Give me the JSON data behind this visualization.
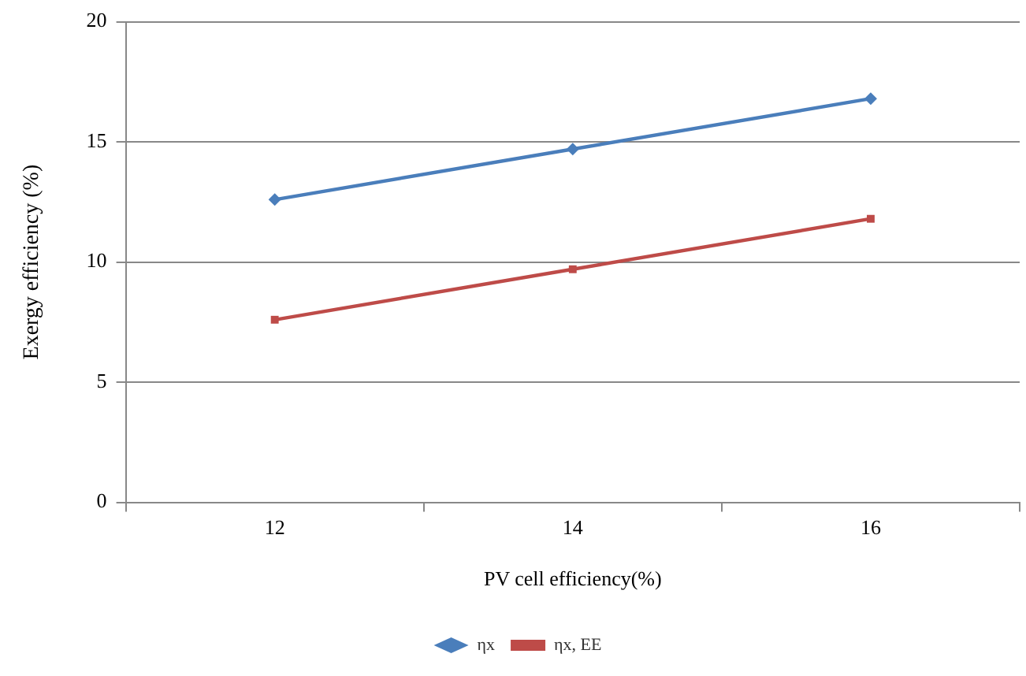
{
  "chart_data": {
    "type": "line",
    "xlabel": "PV cell efficiency(%)",
    "ylabel": "Exergy efficiency (%)",
    "categories": [
      "12",
      "14",
      "16"
    ],
    "series": [
      {
        "name": "ηx",
        "color": "#4a7ebb",
        "values": [
          12.6,
          14.7,
          16.8
        ],
        "marker": "diamond"
      },
      {
        "name": "ηx, EE",
        "color": "#be4b48",
        "values": [
          7.6,
          9.7,
          11.8
        ],
        "marker": "square"
      }
    ],
    "ylim": [
      0,
      20
    ],
    "yticks": [
      0,
      5,
      10,
      15,
      20
    ],
    "grid": "y",
    "legend": "bottom",
    "line_style": "solid"
  }
}
